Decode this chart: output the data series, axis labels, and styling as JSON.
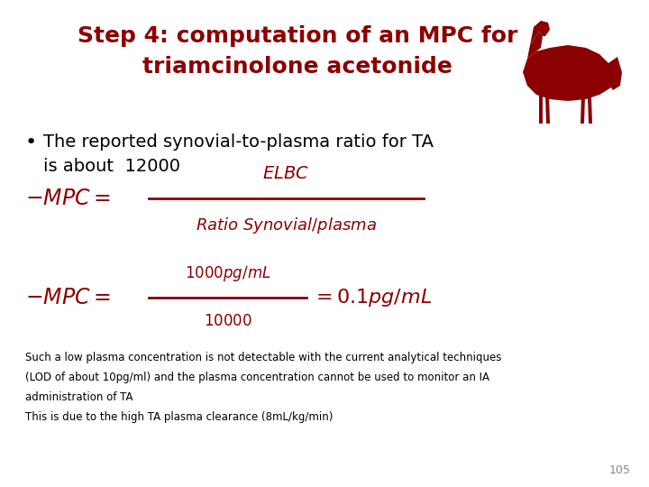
{
  "background_color": "#ffffff",
  "title_line1": "Step 4: computation of an MPC for",
  "title_line2": "triamcinolone acetonide",
  "title_color": "#8B0000",
  "title_fontsize": 18,
  "bullet_text_line1": "The reported synovial-to-plasma ratio for TA",
  "bullet_text_line2": "is about  12000",
  "bullet_color": "#000000",
  "bullet_fontsize": 14,
  "formula_color": "#8B0000",
  "footer_line1": "Such a low plasma concentration is not detectable with the current analytical techniques",
  "footer_line2": "(LOD of about 10pg/ml) and the plasma concentration cannot be used to monitor an IA",
  "footer_line3": "administration of TA",
  "footer_line4": "This is due to the high TA plasma clearance (8mL/kg/min)",
  "footer_color": "#000000",
  "footer_fontsize": 8.5,
  "page_number": "105",
  "page_number_color": "#888888",
  "page_number_fontsize": 9
}
